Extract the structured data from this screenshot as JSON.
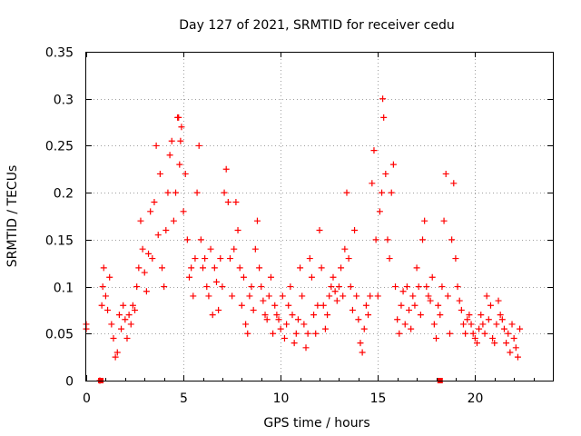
{
  "chart_data": {
    "type": "scatter",
    "title": "Day 127 of 2021, SRMTID for receiver cedu",
    "xlabel": "GPS time / hours",
    "ylabel": "SRMTID / TECUs",
    "xlim": [
      0,
      24
    ],
    "ylim": [
      0,
      0.35
    ],
    "xticks": [
      0,
      5,
      10,
      15,
      20
    ],
    "yticks": [
      0,
      0.05,
      0.1,
      0.15,
      0.2,
      0.25,
      0.3,
      0.35
    ],
    "xtick_labels": [
      "0",
      "5",
      "10",
      "15",
      "20"
    ],
    "ytick_labels": [
      "0",
      "0.05",
      "0.1",
      "0.15",
      "0.2",
      "0.25",
      "0.3",
      "0.35"
    ],
    "grid": true,
    "marker": "+",
    "color": "#ff0000",
    "series": [
      {
        "name": "SRMTID",
        "x": [
          0.0,
          0.0,
          0.7,
          0.8,
          0.85,
          0.9,
          1.0,
          1.1,
          1.2,
          1.3,
          1.4,
          1.5,
          1.6,
          1.7,
          1.8,
          1.9,
          2.0,
          2.1,
          2.2,
          2.3,
          2.4,
          2.5,
          2.6,
          2.7,
          2.8,
          2.9,
          3.0,
          3.1,
          3.2,
          3.3,
          3.4,
          3.5,
          3.6,
          3.7,
          3.8,
          3.9,
          4.0,
          4.1,
          4.2,
          4.3,
          4.4,
          4.5,
          4.6,
          4.7,
          4.75,
          4.8,
          4.85,
          4.9,
          5.0,
          5.1,
          5.2,
          5.3,
          5.4,
          5.5,
          5.6,
          5.7,
          5.8,
          5.9,
          6.0,
          6.1,
          6.2,
          6.3,
          6.4,
          6.5,
          6.6,
          6.7,
          6.8,
          6.9,
          7.0,
          7.1,
          7.2,
          7.3,
          7.4,
          7.5,
          7.6,
          7.7,
          7.8,
          7.9,
          8.0,
          8.1,
          8.2,
          8.3,
          8.4,
          8.5,
          8.6,
          8.7,
          8.8,
          8.9,
          9.0,
          9.1,
          9.2,
          9.3,
          9.4,
          9.5,
          9.6,
          9.7,
          9.8,
          9.9,
          10.0,
          10.1,
          10.2,
          10.3,
          10.4,
          10.5,
          10.6,
          10.7,
          10.8,
          10.9,
          11.0,
          11.1,
          11.2,
          11.3,
          11.4,
          11.5,
          11.6,
          11.7,
          11.8,
          11.9,
          12.0,
          12.1,
          12.2,
          12.3,
          12.4,
          12.5,
          12.6,
          12.7,
          12.8,
          12.9,
          13.0,
          13.1,
          13.2,
          13.3,
          13.4,
          13.5,
          13.6,
          13.7,
          13.8,
          13.9,
          14.0,
          14.1,
          14.2,
          14.3,
          14.4,
          14.5,
          14.6,
          14.7,
          14.8,
          14.9,
          15.0,
          15.1,
          15.2,
          15.25,
          15.3,
          15.4,
          15.5,
          15.6,
          15.7,
          15.8,
          15.9,
          16.0,
          16.1,
          16.2,
          16.3,
          16.4,
          16.5,
          16.6,
          16.7,
          16.8,
          16.9,
          17.0,
          17.1,
          17.2,
          17.3,
          17.4,
          17.5,
          17.6,
          17.7,
          17.8,
          17.9,
          18.0,
          18.1,
          18.2,
          18.3,
          18.4,
          18.5,
          18.6,
          18.7,
          18.8,
          18.9,
          19.0,
          19.1,
          19.2,
          19.3,
          19.4,
          19.5,
          19.6,
          19.7,
          19.8,
          19.9,
          20.0,
          20.1,
          20.2,
          20.3,
          20.4,
          20.5,
          20.6,
          20.7,
          20.8,
          20.9,
          21.0,
          21.1,
          21.2,
          21.3,
          21.4,
          21.5,
          21.6,
          21.7,
          21.8,
          21.9,
          22.0,
          22.1,
          22.2,
          22.3
        ],
        "y": [
          0.06,
          0.055,
          0.0,
          0.08,
          0.1,
          0.12,
          0.09,
          0.075,
          0.11,
          0.06,
          0.045,
          0.025,
          0.03,
          0.07,
          0.055,
          0.08,
          0.065,
          0.045,
          0.07,
          0.06,
          0.08,
          0.075,
          0.1,
          0.12,
          0.17,
          0.14,
          0.115,
          0.095,
          0.135,
          0.18,
          0.13,
          0.19,
          0.25,
          0.155,
          0.22,
          0.12,
          0.1,
          0.16,
          0.2,
          0.24,
          0.255,
          0.17,
          0.2,
          0.28,
          0.28,
          0.23,
          0.255,
          0.27,
          0.18,
          0.22,
          0.15,
          0.11,
          0.12,
          0.09,
          0.13,
          0.2,
          0.25,
          0.15,
          0.12,
          0.13,
          0.1,
          0.09,
          0.14,
          0.07,
          0.12,
          0.105,
          0.075,
          0.13,
          0.1,
          0.2,
          0.225,
          0.19,
          0.13,
          0.09,
          0.14,
          0.19,
          0.16,
          0.12,
          0.08,
          0.11,
          0.06,
          0.05,
          0.09,
          0.1,
          0.075,
          0.14,
          0.17,
          0.12,
          0.1,
          0.085,
          0.07,
          0.065,
          0.09,
          0.11,
          0.05,
          0.08,
          0.07,
          0.065,
          0.055,
          0.09,
          0.045,
          0.06,
          0.08,
          0.1,
          0.07,
          0.04,
          0.05,
          0.065,
          0.12,
          0.09,
          0.06,
          0.035,
          0.05,
          0.13,
          0.11,
          0.07,
          0.05,
          0.08,
          0.16,
          0.12,
          0.08,
          0.055,
          0.07,
          0.09,
          0.1,
          0.11,
          0.095,
          0.085,
          0.1,
          0.12,
          0.09,
          0.14,
          0.2,
          0.13,
          0.1,
          0.075,
          0.16,
          0.09,
          0.065,
          0.04,
          0.03,
          0.055,
          0.08,
          0.07,
          0.09,
          0.21,
          0.245,
          0.15,
          0.09,
          0.18,
          0.2,
          0.3,
          0.28,
          0.22,
          0.15,
          0.13,
          0.2,
          0.23,
          0.1,
          0.065,
          0.05,
          0.08,
          0.095,
          0.06,
          0.1,
          0.075,
          0.055,
          0.09,
          0.08,
          0.12,
          0.1,
          0.07,
          0.15,
          0.17,
          0.1,
          0.09,
          0.085,
          0.11,
          0.06,
          0.045,
          0.08,
          0.07,
          0.1,
          0.17,
          0.22,
          0.09,
          0.05,
          0.15,
          0.21,
          0.13,
          0.1,
          0.085,
          0.075,
          0.06,
          0.05,
          0.065,
          0.07,
          0.06,
          0.05,
          0.045,
          0.04,
          0.055,
          0.07,
          0.06,
          0.05,
          0.09,
          0.065,
          0.08,
          0.045,
          0.04,
          0.06,
          0.085,
          0.07,
          0.065,
          0.055,
          0.04,
          0.05,
          0.03,
          0.06,
          0.045,
          0.035,
          0.025,
          0.055
        ]
      }
    ],
    "markers_on_axis": [
      0.75,
      18.2
    ]
  }
}
